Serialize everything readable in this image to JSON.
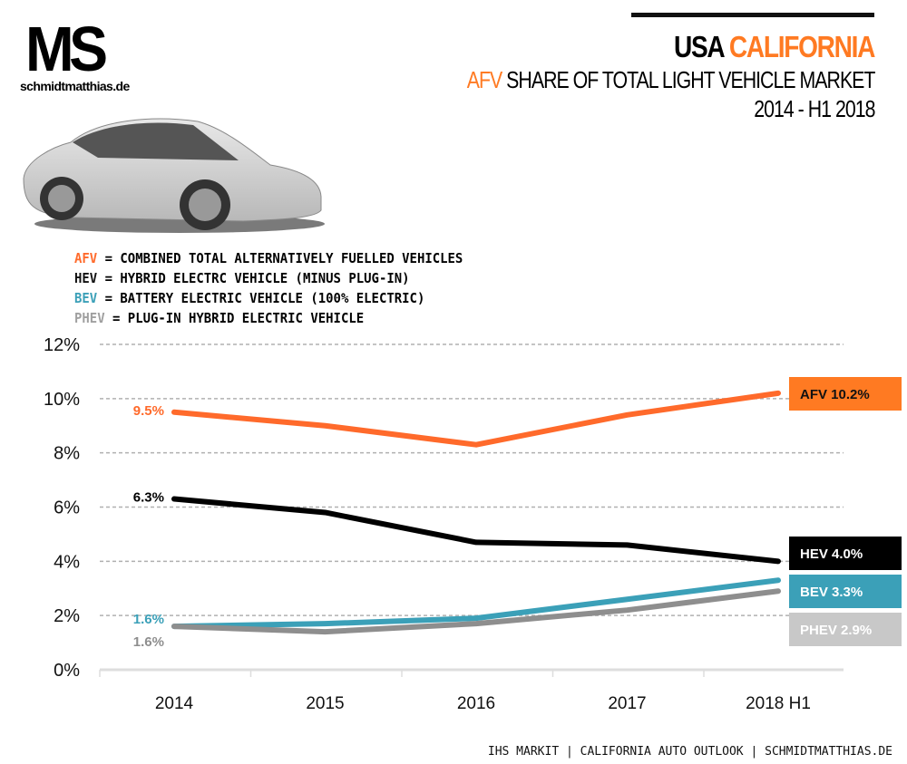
{
  "header": {
    "logo_text": "MS",
    "logo_site": "schmidtmatthias.de",
    "title_part1": "USA",
    "title_part2": "CALIFORNIA",
    "subtitle_part1": "AFV",
    "subtitle_part2": "SHARE OF TOTAL LIGHT VEHICLE MARKET",
    "period": "2014 - H1 2018"
  },
  "legend": [
    {
      "abbr": "AFV",
      "text": "= COMBINED TOTAL ALTERNATIVELY FUELLED VEHICLES",
      "color": "#FF6A2B"
    },
    {
      "abbr": "HEV",
      "text": "= HYBRID ELECTRC VEHICLE (MINUS PLUG-IN)",
      "color": "#111111"
    },
    {
      "abbr": "BEV",
      "text": "= BATTERY ELECTRIC VEHICLE (100% ELECTRIC)",
      "color": "#3BA0B8"
    },
    {
      "abbr": "PHEV",
      "text": "= PLUG-IN HYBRID ELECTRIC VEHICLE",
      "color": "#A0A0A0"
    }
  ],
  "source": "IHS MARKIT | CALIFORNIA AUTO OUTLOOK | SCHMIDTMATTHIAS.DE",
  "chart_data": {
    "type": "line",
    "categories": [
      "2014",
      "2015",
      "2016",
      "2017",
      "2018 H1"
    ],
    "ylim": [
      0,
      12
    ],
    "yticks": [
      "0%",
      "2%",
      "4%",
      "6%",
      "8%",
      "10%",
      "12%"
    ],
    "grid": true,
    "series": [
      {
        "name": "AFV",
        "values": [
          9.5,
          9.0,
          8.3,
          9.4,
          10.2
        ],
        "color": "#FF6A2B",
        "start_label": "9.5%",
        "end_label": "AFV 10.2%",
        "end_box": "#FF7A22",
        "end_text": "#111111"
      },
      {
        "name": "HEV",
        "values": [
          6.3,
          5.8,
          4.7,
          4.6,
          4.0
        ],
        "color": "#000000",
        "start_label": "6.3%",
        "end_label": "HEV 4.0%",
        "end_box": "#000000",
        "end_text": "#FFFFFF"
      },
      {
        "name": "BEV",
        "values": [
          1.6,
          1.7,
          1.9,
          2.6,
          3.3
        ],
        "color": "#3BA0B8",
        "start_label": "1.6%",
        "end_label": "BEV 3.3%",
        "end_box": "#3BA0B8",
        "end_text": "#FFFFFF"
      },
      {
        "name": "PHEV",
        "values": [
          1.6,
          1.4,
          1.7,
          2.2,
          2.9
        ],
        "color": "#8E8E8E",
        "start_label": "1.6%",
        "end_label": "PHEV 2.9%",
        "end_box": "#C8C8C8",
        "end_text": "#FFFFFF"
      }
    ]
  }
}
